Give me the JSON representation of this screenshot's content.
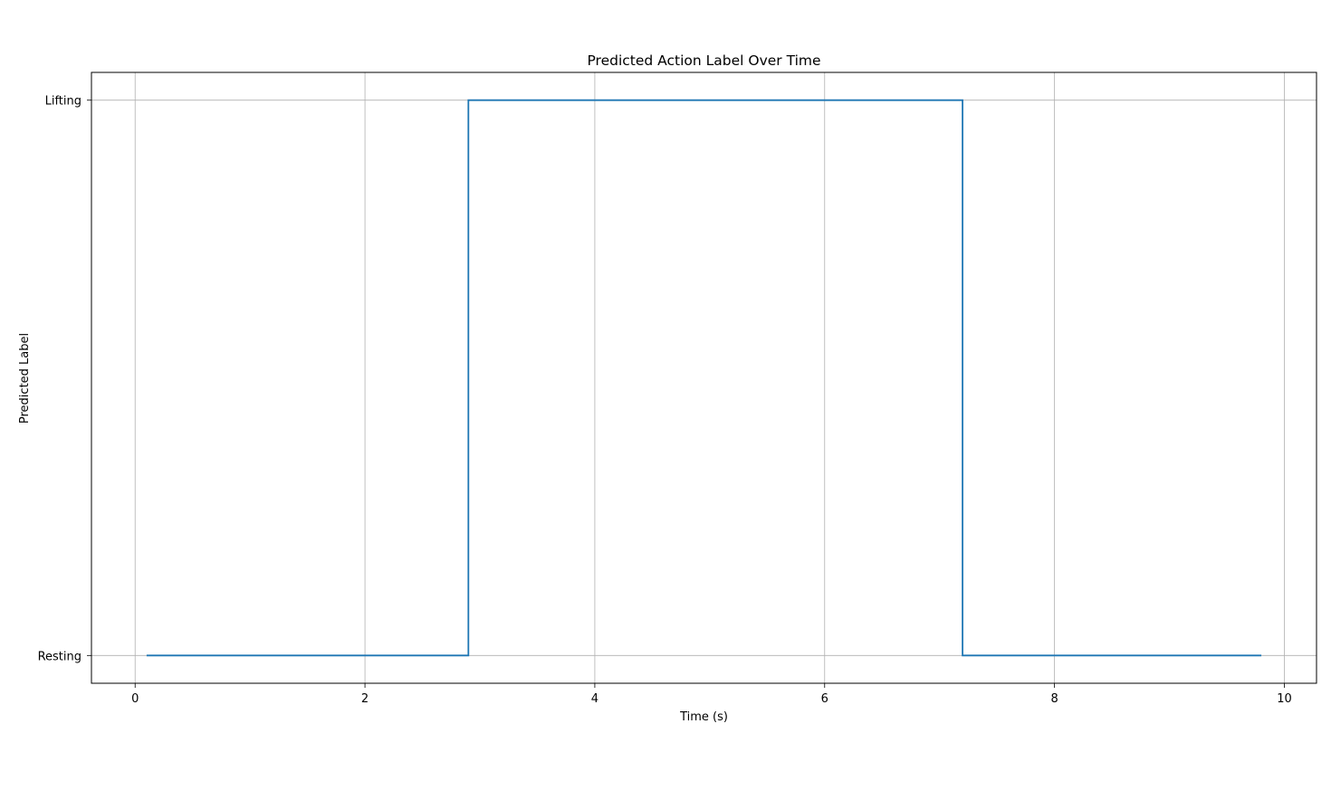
{
  "chart_data": {
    "type": "line",
    "drawstyle": "steps-post",
    "title": "Predicted Action Label Over Time",
    "xlabel": "Time (s)",
    "ylabel": "Predicted Label",
    "xlim": [
      -0.38,
      10.28
    ],
    "ylim": [
      -0.05,
      1.05
    ],
    "xticks": [
      0,
      2,
      4,
      6,
      8,
      10
    ],
    "yticks": [
      {
        "value": 0,
        "label": "Resting"
      },
      {
        "value": 1,
        "label": "Lifting"
      }
    ],
    "grid": true,
    "legend": "none",
    "series": [
      {
        "color": "#1f77b4",
        "x": [
          0.1,
          2.9,
          7.2,
          9.8
        ],
        "y": [
          0,
          1,
          0,
          0
        ],
        "y_labels": [
          "Resting",
          "Lifting",
          "Resting",
          "Resting"
        ]
      }
    ]
  }
}
